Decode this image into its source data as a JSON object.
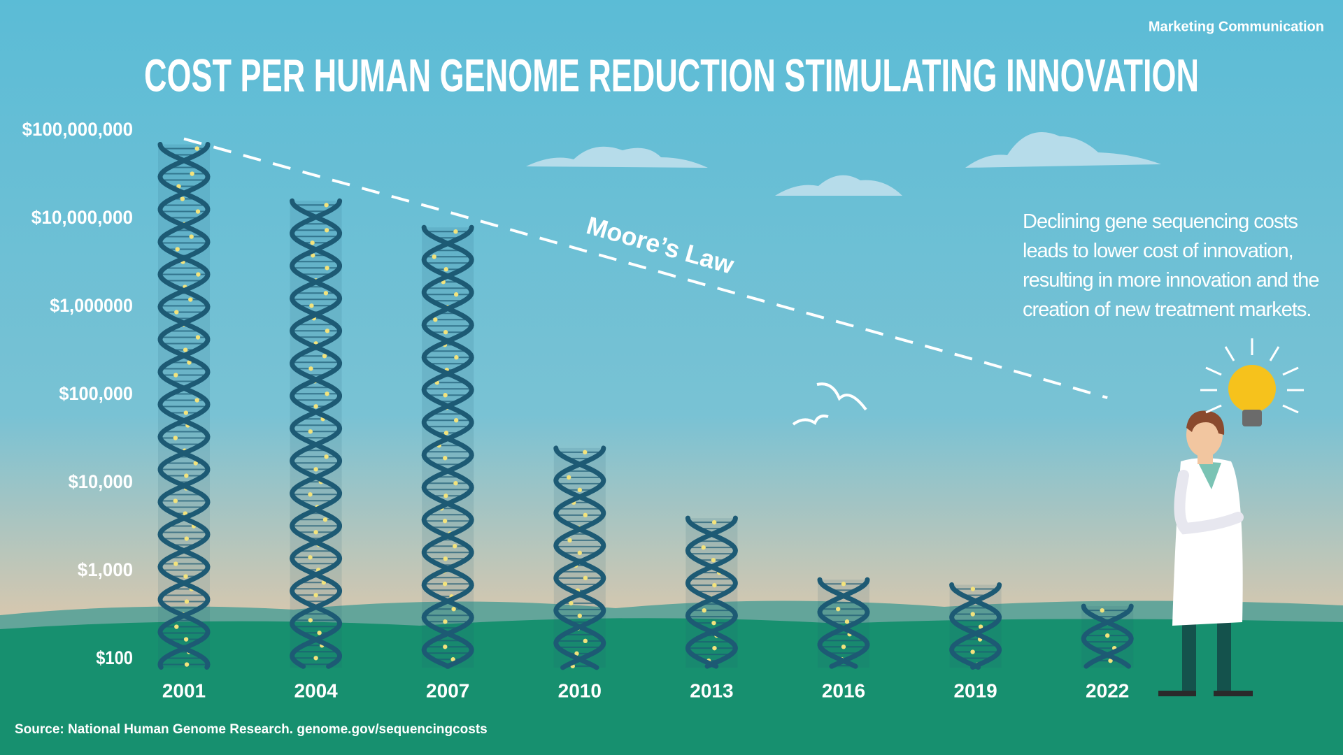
{
  "chart_data": {
    "type": "bar",
    "header_label": "Marketing Communication",
    "title": "COST PER HUMAN GENOME REDUCTION STIMULATING INNOVATION",
    "categories": [
      "2001",
      "2004",
      "2007",
      "2010",
      "2013",
      "2016",
      "2019",
      "2022"
    ],
    "values": [
      70000000,
      16000000,
      8000000,
      25000,
      4000,
      800,
      700,
      400
    ],
    "color": "#1d5a74",
    "dot_color": "#f3e37c",
    "y_scale": "log",
    "ylim": [
      100,
      100000000
    ],
    "yticks": [
      {
        "value": 100000000,
        "label": "$100,000,000"
      },
      {
        "value": 10000000,
        "label": "$10,000,000"
      },
      {
        "value": 1000000,
        "label": "$1,000000"
      },
      {
        "value": 100000,
        "label": "$100,000"
      },
      {
        "value": 10000,
        "label": "$10,000"
      },
      {
        "value": 1000,
        "label": "$1,000"
      },
      {
        "value": 100,
        "label": "$100"
      }
    ],
    "trend_line": {
      "name": "Moore’s Law",
      "color": "#ffffff",
      "dashed": true,
      "values": [
        81000000,
        31000000,
        12000000,
        4500000,
        1700000,
        650000,
        250000,
        93000
      ]
    },
    "annotation": "Declining gene sequencing costs leads to lower cost of innovation, resulting in more innovation and the creation of new treatment markets.",
    "source": "Source: National Human Genome Research. genome.gov/sequencingcosts"
  }
}
